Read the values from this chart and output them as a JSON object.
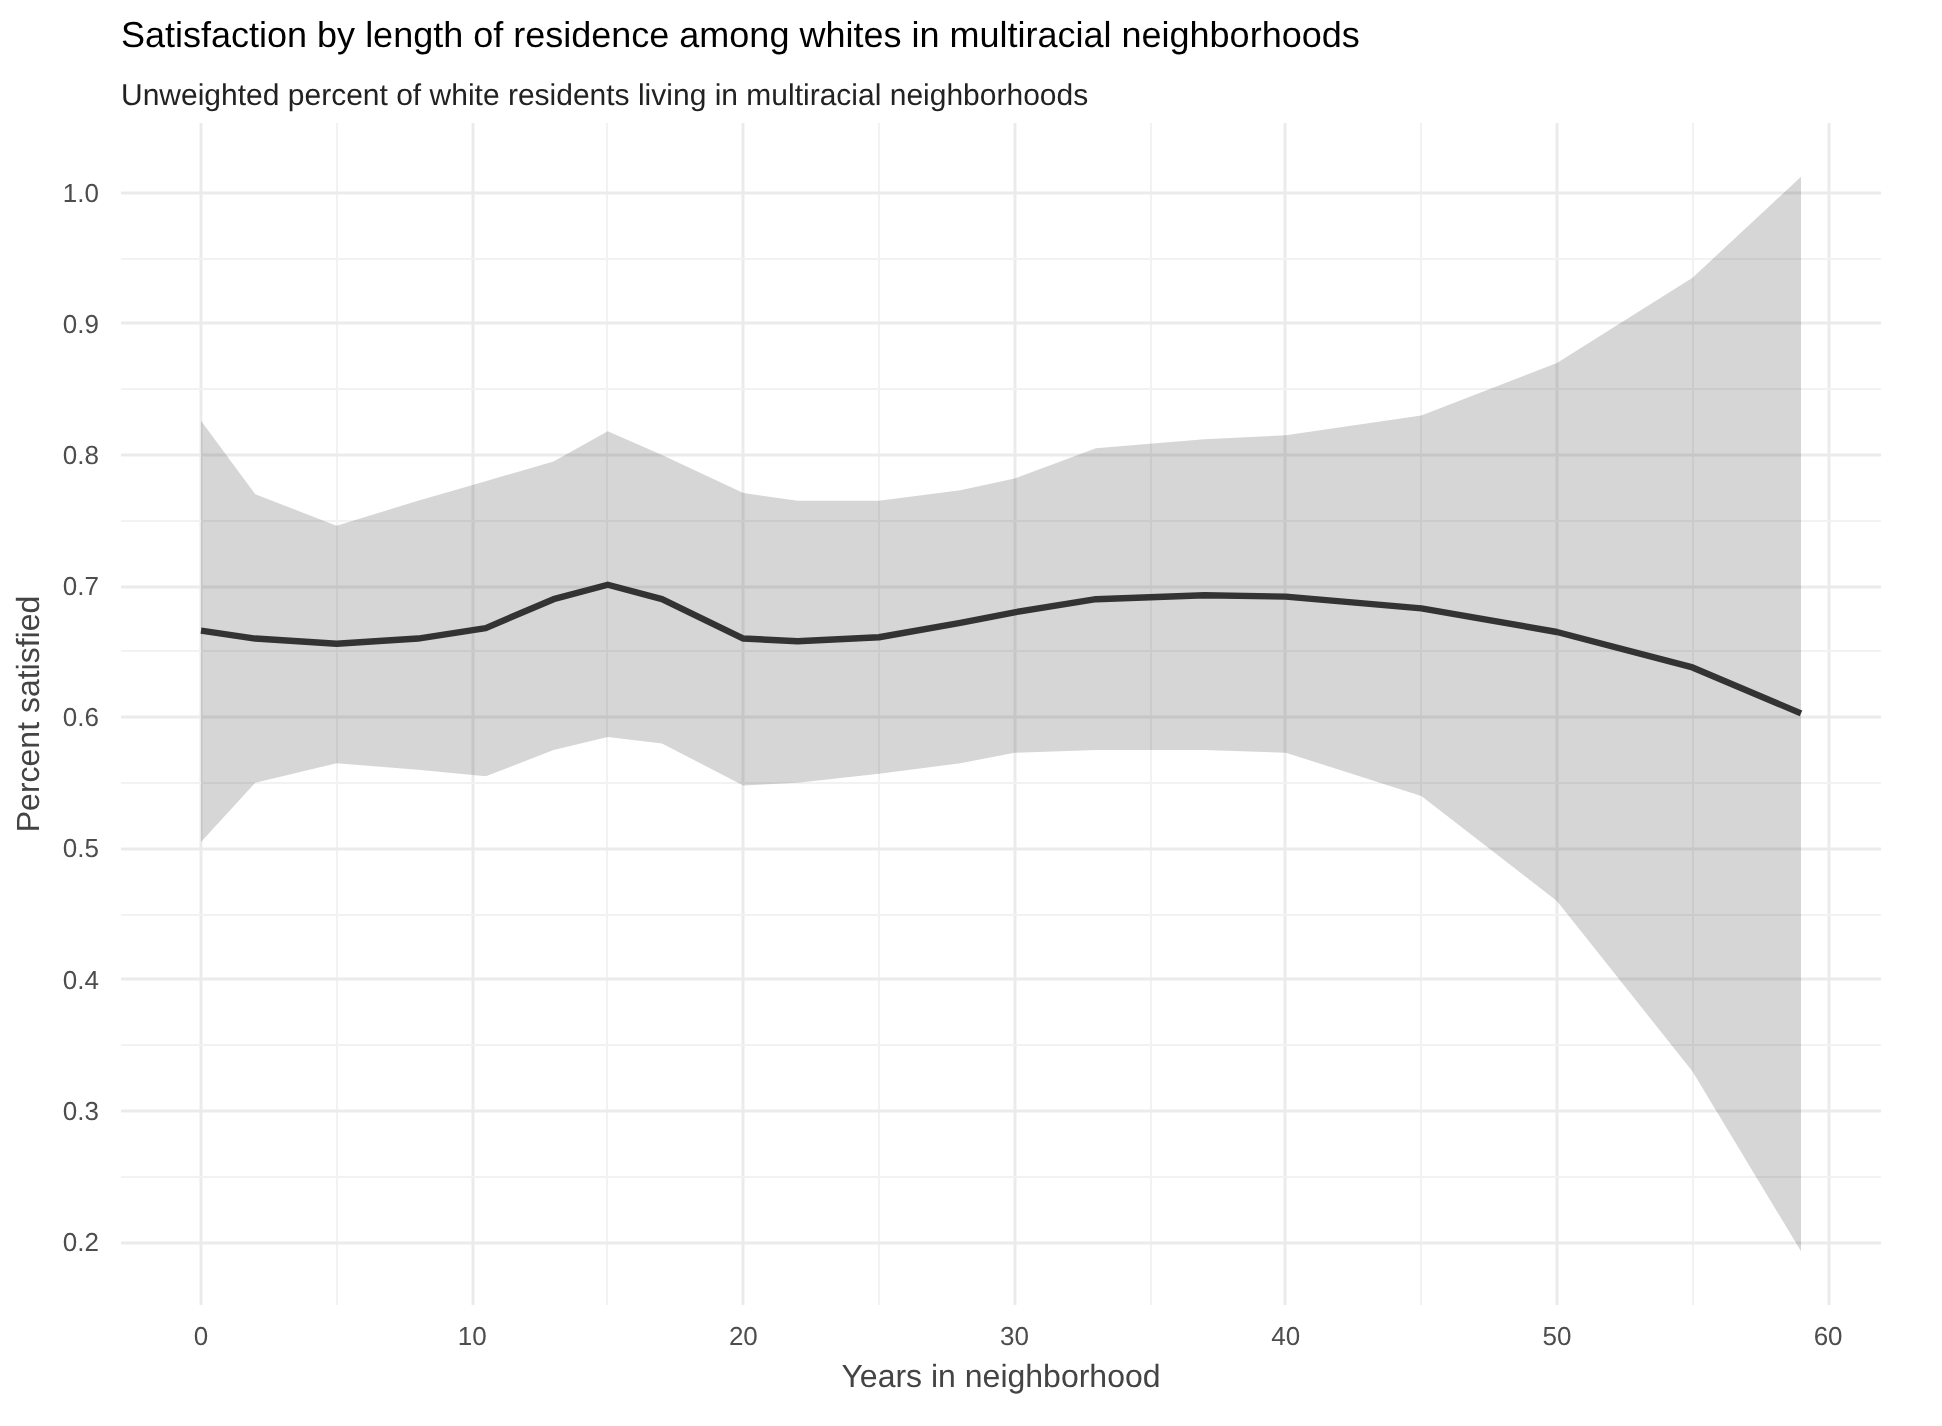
{
  "chart_data": {
    "type": "line",
    "title": "Satisfaction by length of residence among whites in multiracial neighborhoods",
    "subtitle": "Unweighted percent of white residents living in multiracial neighborhoods",
    "xlabel": "Years in neighborhood",
    "ylabel": "Percent satisfied",
    "x": [
      0,
      2,
      5,
      8,
      10.5,
      13,
      15,
      17,
      20,
      22,
      25,
      28,
      30,
      33,
      37,
      40,
      45,
      50,
      55,
      59
    ],
    "series": [
      {
        "color": "#333333",
        "values": [
          0.666,
          0.66,
          0.656,
          0.66,
          0.668,
          0.69,
          0.701,
          0.69,
          0.66,
          0.658,
          0.661,
          0.672,
          0.68,
          0.69,
          0.693,
          0.692,
          0.683,
          0.665,
          0.638,
          0.603
        ],
        "upper": [
          0.826,
          0.77,
          0.746,
          0.765,
          0.78,
          0.795,
          0.818,
          0.8,
          0.771,
          0.765,
          0.765,
          0.773,
          0.782,
          0.805,
          0.812,
          0.815,
          0.83,
          0.87,
          0.935,
          1.012
        ],
        "lower": [
          0.505,
          0.55,
          0.565,
          0.56,
          0.555,
          0.575,
          0.585,
          0.58,
          0.548,
          0.55,
          0.557,
          0.565,
          0.573,
          0.575,
          0.575,
          0.573,
          0.54,
          0.46,
          0.33,
          0.193
        ]
      }
    ],
    "xlim": [
      -2.95,
      61.95
    ],
    "ylim": [
      0.152,
      1.053
    ],
    "xticks": [
      0,
      10,
      20,
      30,
      40,
      50,
      60
    ],
    "yticks": [
      {
        "value": 0.2,
        "label": "0.2"
      },
      {
        "value": 0.3,
        "label": "0.3"
      },
      {
        "value": 0.4,
        "label": "0.4"
      },
      {
        "value": 0.5,
        "label": "0.5"
      },
      {
        "value": 0.6,
        "label": "0.6"
      },
      {
        "value": 0.7,
        "label": "0.7"
      },
      {
        "value": 0.8,
        "label": "0.8"
      },
      {
        "value": 0.9,
        "label": "0.9"
      },
      {
        "value": 1.0,
        "label": "1.0"
      }
    ],
    "grid": true,
    "line_style": "solid"
  }
}
